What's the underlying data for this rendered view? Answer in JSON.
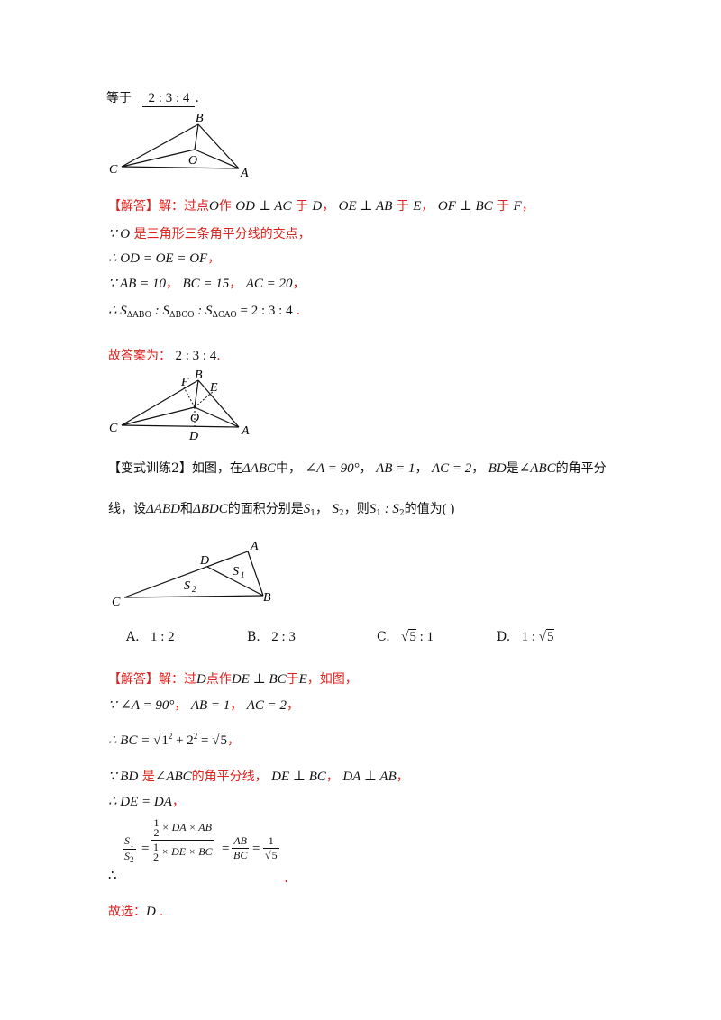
{
  "top": {
    "prefix": "等于",
    "answer": "2 : 3 : 4",
    "suffix": "."
  },
  "fig1": {
    "B": "B",
    "C": "C",
    "O": "O",
    "A": "A"
  },
  "solution1": {
    "tag": "【解答】",
    "l1_a": "解：过点",
    "l1_b": "O",
    "l1_c": "作",
    "l1_d": "OD ⊥ AC",
    "l1_e": "于",
    "l1_f": "D",
    "l1_g": "，",
    "l1_h": "OE ⊥ AB",
    "l1_i": "于",
    "l1_j": "E",
    "l1_k": "，",
    "l1_l": "OF ⊥ BC",
    "l1_m": "于",
    "l1_n": "F",
    "l1_o": "，",
    "l2_a": "∵ O",
    "l2_b": "是三角形三条角平分线的交点，",
    "l3_a": "∴ OD = OE = OF",
    "l3_b": "，",
    "l4_a": "∵ AB = 10",
    "l4_b": "，",
    "l4_c": "BC = 15",
    "l4_d": "，",
    "l4_e": "AC = 20",
    "l4_f": "，",
    "l5_a": "∴ S",
    "l5_s1": "ΔABO",
    "l5_b": " : S",
    "l5_s2": "ΔBCO",
    "l5_c": " : S",
    "l5_s3": "ΔCAO",
    "l5_d": " = 2 : 3 : 4",
    "l5_e": "."
  },
  "answer1": {
    "label": "故答案为：",
    "value": "2 : 3 : 4",
    "end": "."
  },
  "fig2": {
    "F": "F",
    "B": "B",
    "E": "E",
    "C": "C",
    "O": "O",
    "A": "A",
    "D": "D"
  },
  "variant": {
    "l1_a": "【变式训练2】如图，在",
    "l1_b": "ΔABC",
    "l1_c": "中，",
    "l1_d": "∠A = 90°",
    "l1_e": "，",
    "l1_f": "AB = 1",
    "l1_g": "，",
    "l1_h": "AC = 2",
    "l1_i": "，",
    "l1_j": "BD",
    "l1_k": "是",
    "l1_l": "∠ABC",
    "l1_m": "的角平分",
    "l2_a": "线，设",
    "l2_b": "ΔABD",
    "l2_c": "和",
    "l2_d": "ΔBDC",
    "l2_e": "的面积分别是",
    "l2_f": "S",
    "l2_f_sub": "1",
    "l2_g": "，",
    "l2_h": "S",
    "l2_h_sub": "2",
    "l2_i": "，则",
    "l2_j": "S",
    "l2_j_sub": "1",
    "l2_k": " : S",
    "l2_k_sub": "2",
    "l2_l": "的值为",
    "l2_m": "(      )"
  },
  "fig3": {
    "D": "D",
    "A": "A",
    "S1": "S",
    "S1_sub": "1",
    "S2": "S",
    "S2_sub": "2",
    "C": "C",
    "B": "B"
  },
  "options": [
    {
      "letter": "A.",
      "value": "1 : 2"
    },
    {
      "letter": "B.",
      "value": "2 : 3"
    },
    {
      "letter": "C.",
      "value_pre": "√",
      "value_rad": "5",
      "value_post": " : 1"
    },
    {
      "letter": "D.",
      "value_pre": "1 : √",
      "value_rad": "5",
      "value_post": ""
    }
  ],
  "solution2": {
    "tag": "【解答】",
    "l1_a": "解：过",
    "l1_b": "D",
    "l1_c": "点作",
    "l1_d": "DE ⊥ BC",
    "l1_e": "于",
    "l1_f": "E",
    "l1_g": "，如图，",
    "l2_a": "∵ ∠A = 90°",
    "l2_b": "，",
    "l2_c": "AB = 1",
    "l2_d": "，",
    "l2_e": "AC = 2",
    "l2_f": "，",
    "l3_a": "∴ BC = ",
    "l3_rad": "1",
    "l3_rad_sup": "2",
    "l3_rad_b": " + 2",
    "l3_rad_sup2": "2",
    "l3_b": " = √",
    "l3_c": "5",
    "l3_d": "，",
    "l4_a": "∵ BD",
    "l4_b": "是",
    "l4_c": "∠ABC",
    "l4_d": "的角平分线，",
    "l4_e": "DE ⊥ BC",
    "l4_f": "，",
    "l4_g": "DA ⊥ AB",
    "l4_h": "，",
    "l5_a": "∴ DE = DA",
    "l5_b": "，",
    "frac_s1": "S",
    "frac_s1_sub": "1",
    "frac_s2": "S",
    "frac_s2_sub": "2",
    "frac_half": "1",
    "frac_two": "2",
    "frac_top_expr": "× DA × AB",
    "frac_bot_expr": "× DE × BC",
    "frac_ab": "AB",
    "frac_bc": "BC",
    "frac_one": "1",
    "frac_sqrt5": "5",
    "therefore": "∴",
    "frac_end": ".",
    "l6_a": "故选：",
    "l6_b": "D",
    "l6_c": "."
  }
}
